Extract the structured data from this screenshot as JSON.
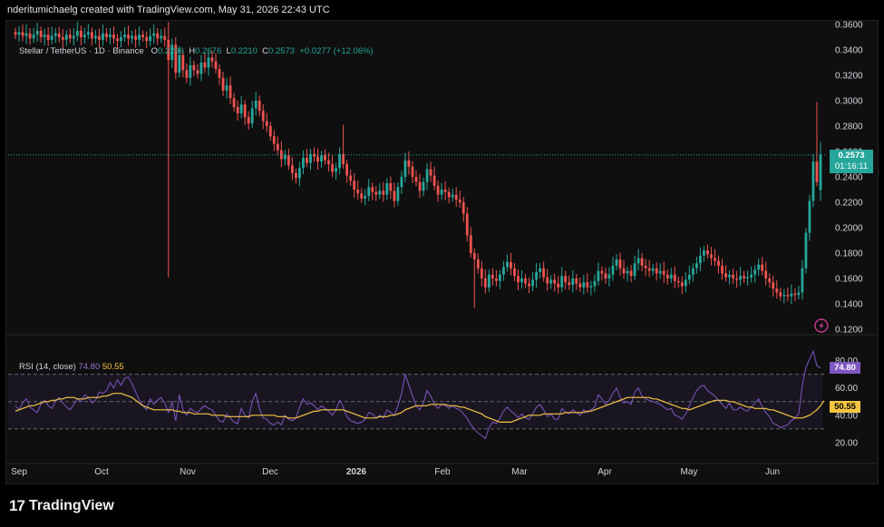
{
  "header": {
    "text": "nderitumichaelg created with TradingView.com, May 31, 2026 22:43 UTC"
  },
  "legend": {
    "symbol": "Stellar / TetherUS · 1D · Binance",
    "o_label": "O",
    "o_value": "0.2296",
    "h_label": "H",
    "h_value": "0.2676",
    "l_label": "L",
    "l_value": "0.2210",
    "c_label": "C",
    "c_value": "0.2573",
    "change": "+0.0277 (+12.06%)"
  },
  "price_tag": {
    "price": "0.2573",
    "countdown": "01:16:11"
  },
  "rsi_legend": {
    "label": "RSI (14, close)",
    "rsi_value": "74.80",
    "ma_value": "50.55"
  },
  "rsi_tags": {
    "rsi": "74.80",
    "ma": "50.55"
  },
  "footer": {
    "brand": "TradingView"
  },
  "colors": {
    "up": "#26a69a",
    "down": "#ef5350",
    "rsi": "#7e57c2",
    "rsi_ma": "#f5c542",
    "bg": "#0f0f0f"
  },
  "chart_data": [
    {
      "type": "candlestick",
      "title": "Stellar / TetherUS · 1D · Binance",
      "price_axis_ticks": [
        "0.3600",
        "0.3400",
        "0.3200",
        "0.3000",
        "0.2800",
        "0.2600",
        "0.2400",
        "0.2200",
        "0.2000",
        "0.1800",
        "0.1600",
        "0.1400",
        "0.1200"
      ],
      "ylim": [
        0.12,
        0.36
      ],
      "time_axis_labels": [
        "Sep",
        "Oct",
        "Nov",
        "Dec",
        "2026",
        "Feb",
        "Mar",
        "Apr",
        "May",
        "Jun"
      ],
      "last": {
        "open": 0.2296,
        "high": 0.2676,
        "low": 0.221,
        "close": 0.2573
      },
      "closes": [
        0.352,
        0.354,
        0.351,
        0.353,
        0.349,
        0.352,
        0.355,
        0.35,
        0.352,
        0.348,
        0.351,
        0.353,
        0.35,
        0.348,
        0.352,
        0.349,
        0.351,
        0.355,
        0.35,
        0.352,
        0.354,
        0.349,
        0.351,
        0.348,
        0.353,
        0.35,
        0.352,
        0.349,
        0.347,
        0.35,
        0.352,
        0.349,
        0.351,
        0.348,
        0.352,
        0.35,
        0.347,
        0.351,
        0.353,
        0.349,
        0.351,
        0.348,
        0.332,
        0.344,
        0.322,
        0.336,
        0.324,
        0.318,
        0.328,
        0.324,
        0.321,
        0.33,
        0.326,
        0.334,
        0.331,
        0.325,
        0.318,
        0.308,
        0.312,
        0.302,
        0.295,
        0.29,
        0.297,
        0.287,
        0.282,
        0.294,
        0.3,
        0.292,
        0.284,
        0.28,
        0.272,
        0.266,
        0.261,
        0.254,
        0.257,
        0.249,
        0.243,
        0.239,
        0.247,
        0.255,
        0.251,
        0.258,
        0.256,
        0.252,
        0.257,
        0.253,
        0.25,
        0.244,
        0.247,
        0.258,
        0.25,
        0.241,
        0.237,
        0.23,
        0.227,
        0.223,
        0.225,
        0.232,
        0.228,
        0.226,
        0.229,
        0.226,
        0.235,
        0.229,
        0.221,
        0.232,
        0.24,
        0.253,
        0.248,
        0.24,
        0.236,
        0.229,
        0.236,
        0.246,
        0.241,
        0.233,
        0.226,
        0.23,
        0.228,
        0.224,
        0.226,
        0.222,
        0.22,
        0.211,
        0.194,
        0.18,
        0.175,
        0.168,
        0.16,
        0.153,
        0.163,
        0.16,
        0.158,
        0.163,
        0.169,
        0.173,
        0.168,
        0.162,
        0.157,
        0.16,
        0.156,
        0.154,
        0.159,
        0.165,
        0.168,
        0.161,
        0.156,
        0.159,
        0.156,
        0.153,
        0.162,
        0.157,
        0.155,
        0.16,
        0.156,
        0.153,
        0.157,
        0.153,
        0.154,
        0.158,
        0.166,
        0.164,
        0.16,
        0.163,
        0.17,
        0.175,
        0.168,
        0.164,
        0.166,
        0.162,
        0.172,
        0.176,
        0.17,
        0.168,
        0.166,
        0.168,
        0.164,
        0.166,
        0.163,
        0.16,
        0.163,
        0.158,
        0.157,
        0.154,
        0.159,
        0.163,
        0.168,
        0.172,
        0.178,
        0.182,
        0.179,
        0.176,
        0.174,
        0.17,
        0.164,
        0.161,
        0.163,
        0.16,
        0.159,
        0.162,
        0.16,
        0.161,
        0.163,
        0.167,
        0.171,
        0.166,
        0.16,
        0.157,
        0.152,
        0.149,
        0.146,
        0.147,
        0.146,
        0.148,
        0.147,
        0.149,
        0.168,
        0.196,
        0.221,
        0.252,
        0.236,
        0.2573
      ]
    },
    {
      "type": "line",
      "title": "RSI (14, close)",
      "ylim": [
        10,
        95
      ],
      "y_ticks": [
        "80.00",
        "60.00",
        "40.00",
        "20.00"
      ],
      "bands": [
        30,
        50,
        70
      ],
      "rsi": [
        47,
        44,
        49,
        52,
        46,
        44,
        42,
        48,
        51,
        47,
        45,
        50,
        53,
        49,
        46,
        44,
        48,
        52,
        50,
        55,
        53,
        49,
        51,
        57,
        56,
        58,
        64,
        60,
        66,
        62,
        67,
        68,
        63,
        57,
        51,
        47,
        44,
        52,
        48,
        51,
        53,
        49,
        42,
        50,
        36,
        55,
        44,
        40,
        45,
        43,
        42,
        45,
        47,
        45,
        44,
        40,
        36,
        35,
        41,
        38,
        35,
        34,
        45,
        40,
        38,
        50,
        56,
        45,
        38,
        37,
        34,
        33,
        35,
        33,
        40,
        37,
        36,
        38,
        46,
        52,
        48,
        49,
        47,
        44,
        47,
        45,
        43,
        40,
        44,
        51,
        46,
        39,
        36,
        35,
        34,
        35,
        37,
        42,
        41,
        38,
        40,
        38,
        44,
        42,
        40,
        47,
        56,
        70,
        62,
        54,
        47,
        44,
        49,
        58,
        54,
        48,
        45,
        48,
        47,
        45,
        47,
        45,
        44,
        41,
        38,
        33,
        30,
        27,
        25,
        23,
        31,
        35,
        34,
        38,
        43,
        46,
        43,
        41,
        38,
        41,
        38,
        37,
        41,
        46,
        48,
        44,
        39,
        41,
        37,
        37,
        45,
        42,
        41,
        44,
        42,
        40,
        44,
        42,
        44,
        46,
        55,
        52,
        48,
        51,
        56,
        60,
        53,
        49,
        50,
        48,
        57,
        60,
        54,
        52,
        51,
        50,
        49,
        48,
        46,
        44,
        45,
        40,
        39,
        37,
        41,
        47,
        53,
        58,
        61,
        62,
        58,
        56,
        54,
        51,
        48,
        45,
        49,
        44,
        44,
        46,
        44,
        43,
        46,
        49,
        52,
        46,
        42,
        39,
        34,
        33,
        31,
        32,
        33,
        36,
        38,
        41,
        62,
        75,
        81,
        87,
        76,
        74.8
      ],
      "ma": [
        43,
        44,
        45,
        46,
        47,
        47,
        48,
        49,
        50,
        50,
        51,
        51,
        52,
        52,
        53,
        53,
        53,
        52,
        52,
        52,
        53,
        53,
        53,
        53,
        54,
        54,
        55,
        56,
        56,
        56,
        55,
        54,
        53,
        51,
        49,
        47,
        46,
        45,
        44,
        44,
        44,
        44,
        44,
        44,
        43,
        43,
        42,
        42,
        42,
        41,
        41,
        41,
        41,
        41,
        40,
        40,
        40,
        40,
        39,
        39,
        39,
        39,
        39,
        39,
        39,
        40,
        40,
        40,
        40,
        40,
        40,
        40,
        39,
        39,
        39,
        38,
        38,
        38,
        39,
        40,
        41,
        42,
        43,
        43,
        44,
        44,
        44,
        44,
        44,
        44,
        44,
        43,
        42,
        41,
        40,
        39,
        38,
        38,
        38,
        38,
        39,
        39,
        39,
        40,
        40,
        41,
        42,
        44,
        45,
        46,
        47,
        47,
        47,
        47,
        48,
        48,
        48,
        48,
        48,
        47,
        47,
        47,
        46,
        46,
        45,
        44,
        43,
        42,
        41,
        39,
        38,
        37,
        36,
        35,
        35,
        35,
        35,
        36,
        37,
        38,
        39,
        40,
        40,
        40,
        40,
        41,
        41,
        41,
        41,
        41,
        41,
        42,
        42,
        42,
        42,
        42,
        42,
        43,
        43,
        44,
        45,
        46,
        47,
        48,
        49,
        50,
        51,
        52,
        53,
        53,
        53,
        53,
        53,
        53,
        53,
        52,
        52,
        51,
        50,
        49,
        48,
        47,
        46,
        45,
        45,
        44,
        45,
        46,
        47,
        48,
        49,
        50,
        51,
        51,
        51,
        51,
        50,
        50,
        49,
        48,
        47,
        46,
        46,
        45,
        45,
        45,
        45,
        44,
        44,
        43,
        42,
        41,
        40,
        39,
        38,
        38,
        38,
        39,
        40,
        42,
        44,
        47,
        50.55
      ]
    }
  ]
}
